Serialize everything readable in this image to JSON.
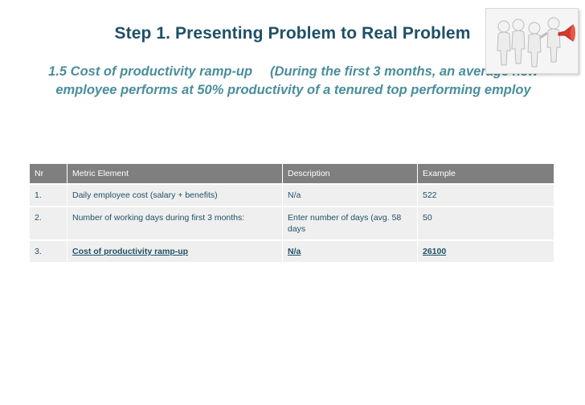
{
  "title": "Step 1. Presenting Problem to Real Problem",
  "subtitle": {
    "line1_a": "1.5 Cost of productivity ramp-up",
    "line1_b": "(During the first 3 months, an average new",
    "line2": "employee performs at 50% productivity of a tenured top performing employ"
  },
  "logo": {
    "icon": "people-with-megaphone-icon"
  },
  "table": {
    "headers": [
      "Nr",
      "Metric Element",
      "Description",
      "Example"
    ],
    "rows": [
      [
        "1.",
        "Daily employee cost (salary + benefits)",
        "N/a",
        "522"
      ],
      [
        "2.",
        "Number of working days during first 3 months:",
        "Enter number of days (avg. 58 days",
        "50"
      ],
      [
        "3.",
        "Cost of productivity ramp-up",
        "N/a",
        "26100"
      ]
    ]
  },
  "colors": {
    "title": "#1f5067",
    "subtitle": "#4a8e9c",
    "header_bg": "#7f7f7f",
    "row_bg": "#efefef"
  }
}
